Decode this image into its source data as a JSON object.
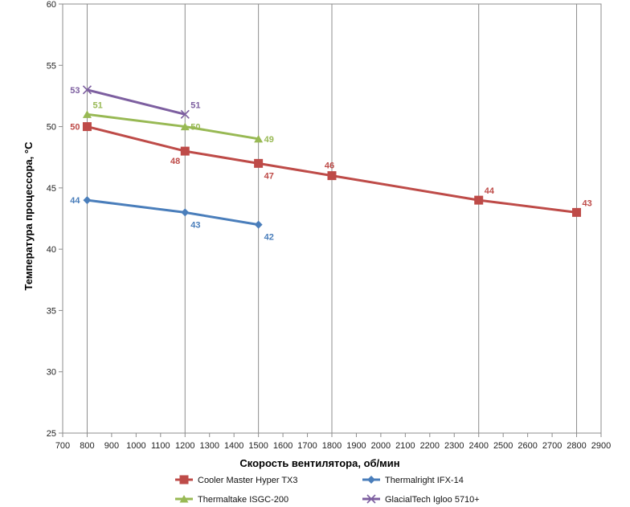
{
  "chart_data": {
    "type": "line",
    "xlabel": "Скорость вентилятора, об/мин",
    "ylabel": "Температура процессора, °C",
    "xlim": [
      700,
      2900
    ],
    "ylim": [
      25,
      60
    ],
    "xticks": [
      700,
      800,
      900,
      1000,
      1100,
      1200,
      1300,
      1400,
      1500,
      1600,
      1700,
      1800,
      1900,
      2000,
      2100,
      2200,
      2300,
      2400,
      2500,
      2600,
      2700,
      2800,
      2900
    ],
    "yticks": [
      25,
      30,
      35,
      40,
      45,
      50,
      55,
      60
    ],
    "grid": "vertical",
    "legend_position": "bottom",
    "series": [
      {
        "name": "Cooler Master Hyper TX3",
        "color": "#be4b48",
        "marker": "square",
        "points": [
          [
            800,
            50
          ],
          [
            1200,
            48
          ],
          [
            1500,
            47
          ],
          [
            1800,
            46
          ],
          [
            2400,
            44
          ],
          [
            2800,
            43
          ]
        ],
        "label_pos": [
          "left",
          "below-left",
          "below-right",
          "above",
          "above-right",
          "above-right"
        ]
      },
      {
        "name": "Thermalright IFX-14",
        "color": "#4a7ebb",
        "marker": "diamond",
        "points": [
          [
            800,
            44
          ],
          [
            1200,
            43
          ],
          [
            1500,
            42
          ]
        ],
        "label_pos": [
          "left",
          "below-right",
          "below-right"
        ]
      },
      {
        "name": "Thermaltake ISGC-200",
        "color": "#98b954",
        "marker": "triangle",
        "points": [
          [
            800,
            51
          ],
          [
            1200,
            50
          ],
          [
            1500,
            49
          ]
        ],
        "label_pos": [
          "above-right",
          "right",
          "right"
        ]
      },
      {
        "name": "GlacialTech Igloo 5710+",
        "color": "#7d5fa0",
        "marker": "x",
        "points": [
          [
            800,
            53
          ],
          [
            1200,
            51
          ]
        ],
        "label_pos": [
          "left",
          "above-right"
        ]
      }
    ]
  }
}
